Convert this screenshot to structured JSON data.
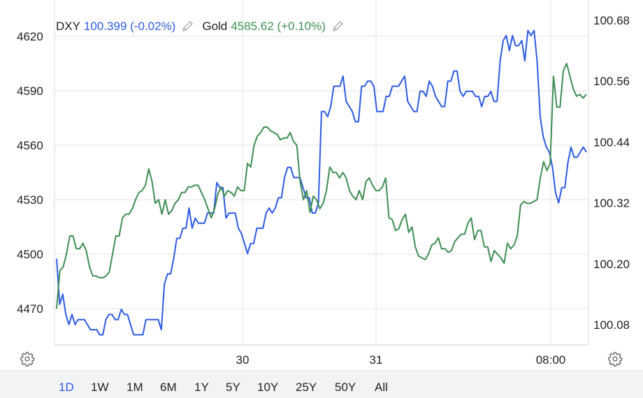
{
  "legend": {
    "dxy": {
      "symbol": "DXY",
      "value": "100.399 (-0.02%)",
      "color": "#2d5be3"
    },
    "gold": {
      "symbol": "Gold",
      "value": "4585.62 (+0.10%)",
      "color": "#3e8e52"
    },
    "edit_icon": "pencil-icon"
  },
  "settings_icon": "gear-icon",
  "range_selector": {
    "options": [
      "1D",
      "1W",
      "1M",
      "6M",
      "1Y",
      "5Y",
      "10Y",
      "25Y",
      "50Y",
      "All"
    ],
    "active": "1D"
  },
  "chart_data": {
    "type": "line",
    "x_axis": {
      "tick_labels": [
        "30",
        "31",
        "08:00"
      ]
    },
    "left_axis": {
      "series": "Gold",
      "ticks": [
        4470,
        4500,
        4530,
        4560,
        4590,
        4620
      ],
      "ylim": [
        4450,
        4640
      ]
    },
    "right_axis": {
      "series": "DXY",
      "ticks": [
        100.08,
        100.2,
        100.32,
        100.44,
        100.56,
        100.68
      ],
      "ylim": [
        100.04,
        100.72
      ]
    },
    "grid": true,
    "series": [
      {
        "name": "DXY",
        "axis": "right",
        "color": "#2d5be3",
        "values": [
          100.21,
          100.12,
          100.14,
          100.1,
          100.08,
          100.1,
          100.08,
          100.09,
          100.09,
          100.09,
          100.08,
          100.07,
          100.07,
          100.07,
          100.06,
          100.06,
          100.09,
          100.1,
          100.1,
          100.09,
          100.09,
          100.11,
          100.1,
          100.1,
          100.08,
          100.06,
          100.06,
          100.06,
          100.06,
          100.09,
          100.09,
          100.09,
          100.09,
          100.09,
          100.07,
          100.16,
          100.18,
          100.18,
          100.21,
          100.25,
          100.25,
          100.27,
          100.27,
          100.31,
          100.27,
          100.29,
          100.28,
          100.28,
          100.28,
          100.3,
          100.3,
          100.3,
          100.36,
          100.35,
          100.35,
          100.29,
          100.3,
          100.3,
          100.3,
          100.27,
          100.26,
          100.24,
          100.22,
          100.24,
          100.24,
          100.27,
          100.27,
          100.27,
          100.3,
          100.31,
          100.3,
          100.31,
          100.33,
          100.33,
          100.37,
          100.39,
          100.39,
          100.37,
          100.37,
          100.37,
          100.35,
          100.33,
          100.33,
          100.3,
          100.3,
          100.32,
          100.5,
          100.5,
          100.49,
          100.51,
          100.55,
          100.55,
          100.55,
          100.57,
          100.52,
          100.51,
          100.5,
          100.48,
          100.48,
          100.55,
          100.55,
          100.56,
          100.56,
          100.55,
          100.5,
          100.5,
          100.5,
          100.53,
          100.53,
          100.55,
          100.55,
          100.55,
          100.56,
          100.57,
          100.52,
          100.51,
          100.5,
          100.5,
          100.54,
          100.54,
          100.53,
          100.56,
          100.55,
          100.53,
          100.52,
          100.51,
          100.51,
          100.56,
          100.56,
          100.58,
          100.58,
          100.54,
          100.53,
          100.54,
          100.54,
          100.54,
          100.53,
          100.53,
          100.51,
          100.53,
          100.53,
          100.54,
          100.52,
          100.52,
          100.6,
          100.64,
          100.65,
          100.62,
          100.65,
          100.63,
          100.63,
          100.64,
          100.6,
          100.66,
          100.65,
          100.66,
          100.6,
          100.49,
          100.45,
          100.43,
          100.42,
          100.39,
          100.34,
          100.32,
          100.35,
          100.35,
          100.4,
          100.43,
          100.41,
          100.41,
          100.42,
          100.43,
          100.42
        ]
      },
      {
        "name": "Gold",
        "axis": "left",
        "color": "#3e8e52",
        "values": [
          4470,
          4491,
          4493,
          4500,
          4510,
          4510,
          4503,
          4503,
          4506,
          4502,
          4493,
          4488,
          4488,
          4487,
          4487,
          4488,
          4490,
          4500,
          4510,
          4510,
          4520,
          4522,
          4522,
          4525,
          4530,
          4534,
          4535,
          4538,
          4547,
          4540,
          4528,
          4530,
          4522,
          4530,
          4522,
          4524,
          4528,
          4530,
          4534,
          4534,
          4537,
          4537,
          4538,
          4538,
          4534,
          4530,
          4525,
          4520,
          4525,
          4533,
          4537,
          4532,
          4535,
          4534,
          4532,
          4537,
          4535,
          4535,
          4550,
          4548,
          4560,
          4565,
          4567,
          4570,
          4570,
          4568,
          4567,
          4566,
          4563,
          4564,
          4564,
          4567,
          4562,
          4560,
          4540,
          4530,
          4535,
          4523,
          4532,
          4530,
          4525,
          4528,
          4535,
          4548,
          4545,
          4545,
          4542,
          4545,
          4542,
          4535,
          4532,
          4530,
          4535,
          4530,
          4540,
          4542,
          4538,
          4535,
          4535,
          4537,
          4542,
          4520,
          4519,
          4513,
          4514,
          4519,
          4522,
          4512,
          4515,
          4504,
          4499,
          4498,
          4497,
          4500,
          4505,
          4506,
          4509,
          4503,
          4503,
          4501,
          4502,
          4507,
          4509,
          4511,
          4511,
          4517,
          4520,
          4508,
          4513,
          4513,
          4504,
          4504,
          4496,
          4502,
          4500,
          4498,
          4495,
          4506,
          4503,
          4505,
          4510,
          4527,
          4529,
          4528,
          4528,
          4529,
          4530,
          4542,
          4551,
          4546,
          4550,
          4598,
          4581,
          4581,
          4601,
          4605,
          4598,
          4591,
          4587,
          4588,
          4586,
          4588
        ]
      }
    ]
  }
}
